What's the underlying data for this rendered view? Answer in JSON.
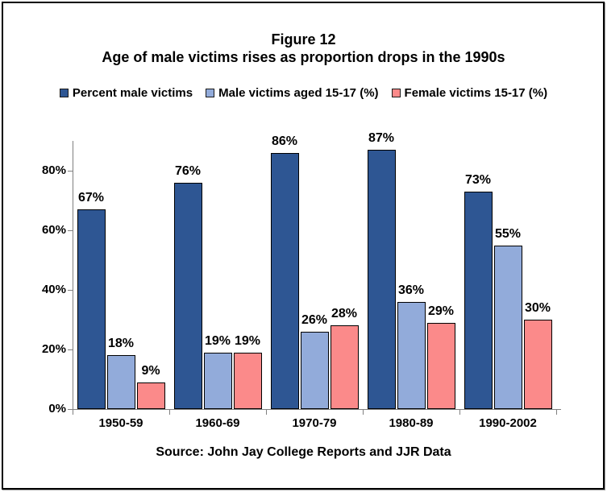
{
  "figure": {
    "title": "Figure 12",
    "subtitle": "Age of male victims rises as proportion drops in the 1990s",
    "source": "Source: John Jay College Reports and JJR Data"
  },
  "colors": {
    "series_dark_blue": "#2E5693",
    "series_light_blue": "#92ABDA",
    "series_pink": "#FB8A8A",
    "bar_border": "#000000",
    "axis": "#808080",
    "text": "#000000",
    "background": "#FFFFFF"
  },
  "chart_data": {
    "type": "bar",
    "title": "Figure 12",
    "subtitle": "Age of male victims rises as proportion drops in the 1990s",
    "categories": [
      "1950-59",
      "1960-69",
      "1970-79",
      "1980-89",
      "1990-2002"
    ],
    "series": [
      {
        "name": "Percent male victims",
        "color_key": "series_dark_blue",
        "values": [
          67,
          76,
          86,
          87,
          73
        ]
      },
      {
        "name": "Male victims aged 15-17 (%)",
        "color_key": "series_light_blue",
        "values": [
          18,
          19,
          26,
          36,
          55
        ]
      },
      {
        "name": "Female victims 15-17 (%)",
        "color_key": "series_pink",
        "values": [
          9,
          19,
          28,
          29,
          30
        ]
      }
    ],
    "value_label_suffix": "%",
    "y_ticks": [
      0,
      20,
      40,
      60,
      80
    ],
    "y_tick_labels": [
      "0%",
      "20%",
      "40%",
      "60%",
      "80%"
    ],
    "ylim": [
      0,
      90
    ],
    "grid": false,
    "legend_position": "top",
    "source": "Source: John Jay College Reports and JJR Data"
  }
}
